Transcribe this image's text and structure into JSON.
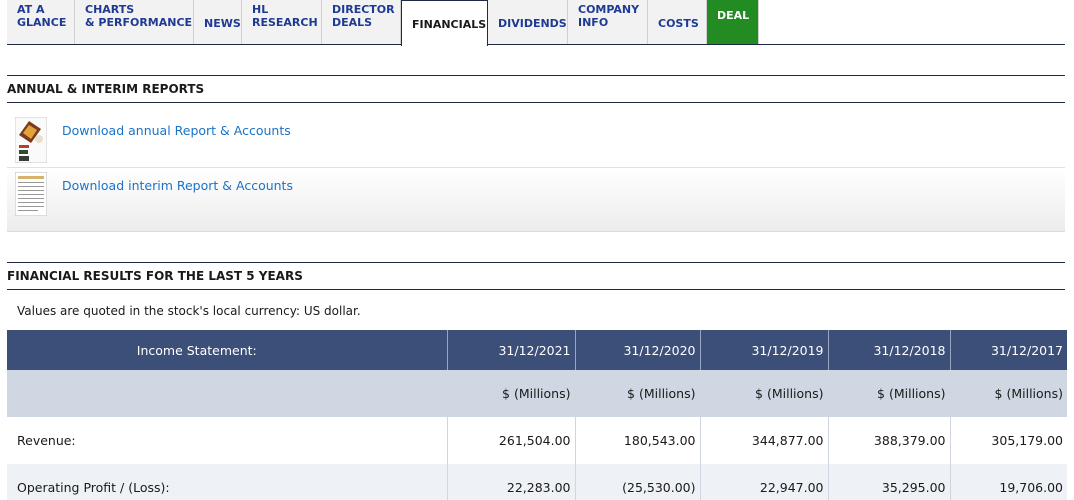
{
  "tabs": [
    {
      "label": "AT A\nGLANCE"
    },
    {
      "label": "CHARTS\n& PERFORMANCE"
    },
    {
      "label": "NEWS"
    },
    {
      "label": "HL\nRESEARCH"
    },
    {
      "label": "DIRECTOR\nDEALS"
    },
    {
      "label": "FINANCIALS"
    },
    {
      "label": "DIVIDENDS"
    },
    {
      "label": "COMPANY\nINFO"
    },
    {
      "label": "COSTS"
    },
    {
      "label": "DEAL"
    }
  ],
  "reports": {
    "heading": "ANNUAL & INTERIM REPORTS",
    "annual_link": "Download annual Report & Accounts",
    "interim_link": "Download interim Report & Accounts"
  },
  "results": {
    "heading": "FINANCIAL RESULTS FOR THE LAST 5 YEARS",
    "note": "Values are quoted in the stock's local currency: US dollar.",
    "table": {
      "header": [
        "Income Statement:",
        "31/12/2021",
        "31/12/2020",
        "31/12/2019",
        "31/12/2018",
        "31/12/2017"
      ],
      "units": [
        "",
        "$ (Millions)",
        "$ (Millions)",
        "$ (Millions)",
        "$ (Millions)",
        "$ (Millions)"
      ],
      "rows": [
        {
          "label": "Revenue:",
          "values": [
            "261,504.00",
            "180,543.00",
            "344,877.00",
            "388,379.00",
            "305,179.00"
          ]
        },
        {
          "label": "Operating Profit / (Loss):",
          "values": [
            "22,283.00",
            "(25,530.00)",
            "22,947.00",
            "35,295.00",
            "19,706.00"
          ]
        }
      ]
    }
  },
  "colors": {
    "header_bg": "#3c4f79",
    "deal_tab": "#228b22",
    "link": "#1a73c8"
  }
}
